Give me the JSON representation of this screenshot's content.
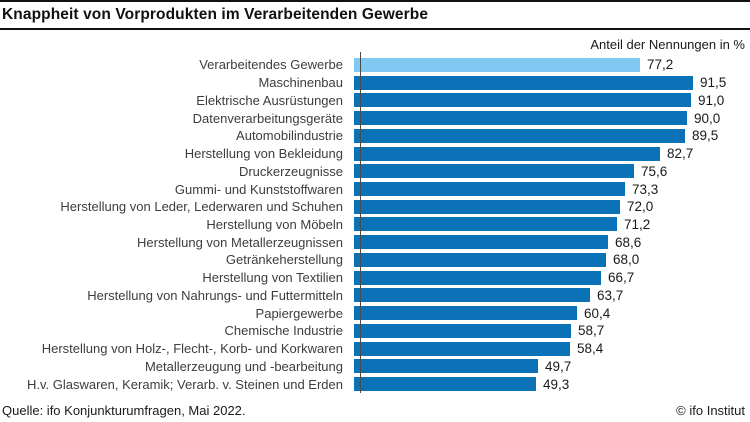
{
  "title": "Knappheit von Vorprodukten im Verarbeitenden Gewerbe",
  "axis_note": "Anteil der Nennungen in %",
  "footer": {
    "source": "Quelle: ifo Konjunkturumfragen, Mai 2022.",
    "copyright": "© ifo Institut"
  },
  "colors": {
    "bar": "#0b72b8",
    "bar_highlight": "#7fc9f2",
    "axis_line": "#4a4a4a"
  },
  "chart_data": {
    "type": "bar",
    "orientation": "horizontal",
    "title": "Knappheit von Vorprodukten im Verarbeitenden Gewerbe",
    "xlabel": "Anteil der Nennungen in %",
    "ylabel": "",
    "xlim": [
      0,
      100
    ],
    "grid": false,
    "legend": false,
    "highlight_index": 0,
    "categories": [
      "Verarbeitendes Gewerbe",
      "Maschinenbau",
      "Elektrische Ausrüstungen",
      "Datenverarbeitungsgeräte",
      "Automobilindustrie",
      "Herstellung von Bekleidung",
      "Druckerzeugnisse",
      "Gummi- und Kunststoffwaren",
      "Herstellung von Leder, Lederwaren und Schuhen",
      "Herstellung von Möbeln",
      "Herstellung von Metallerzeugnissen",
      "Getränkeherstellung",
      "Herstellung von Textilien",
      "Herstellung von Nahrungs- und Futtermitteln",
      "Papiergewerbe",
      "Chemische Industrie",
      "Herstellung von Holz-, Flecht-, Korb- und Korkwaren",
      "Metallerzeugung und -bearbeitung",
      "H.v. Glaswaren, Keramik; Verarb. v. Steinen und Erden"
    ],
    "values": [
      77.2,
      91.5,
      91.0,
      90.0,
      89.5,
      82.7,
      75.6,
      73.3,
      72.0,
      71.2,
      68.6,
      68.0,
      66.7,
      63.7,
      60.4,
      58.7,
      58.4,
      49.7,
      49.3
    ],
    "value_labels": [
      "77,2",
      "91,5",
      "91,0",
      "90,0",
      "89,5",
      "82,7",
      "75,6",
      "73,3",
      "72,0",
      "71,2",
      "68,6",
      "68,0",
      "66,7",
      "63,7",
      "60,4",
      "58,7",
      "58,4",
      "49,7",
      "49,3"
    ]
  }
}
